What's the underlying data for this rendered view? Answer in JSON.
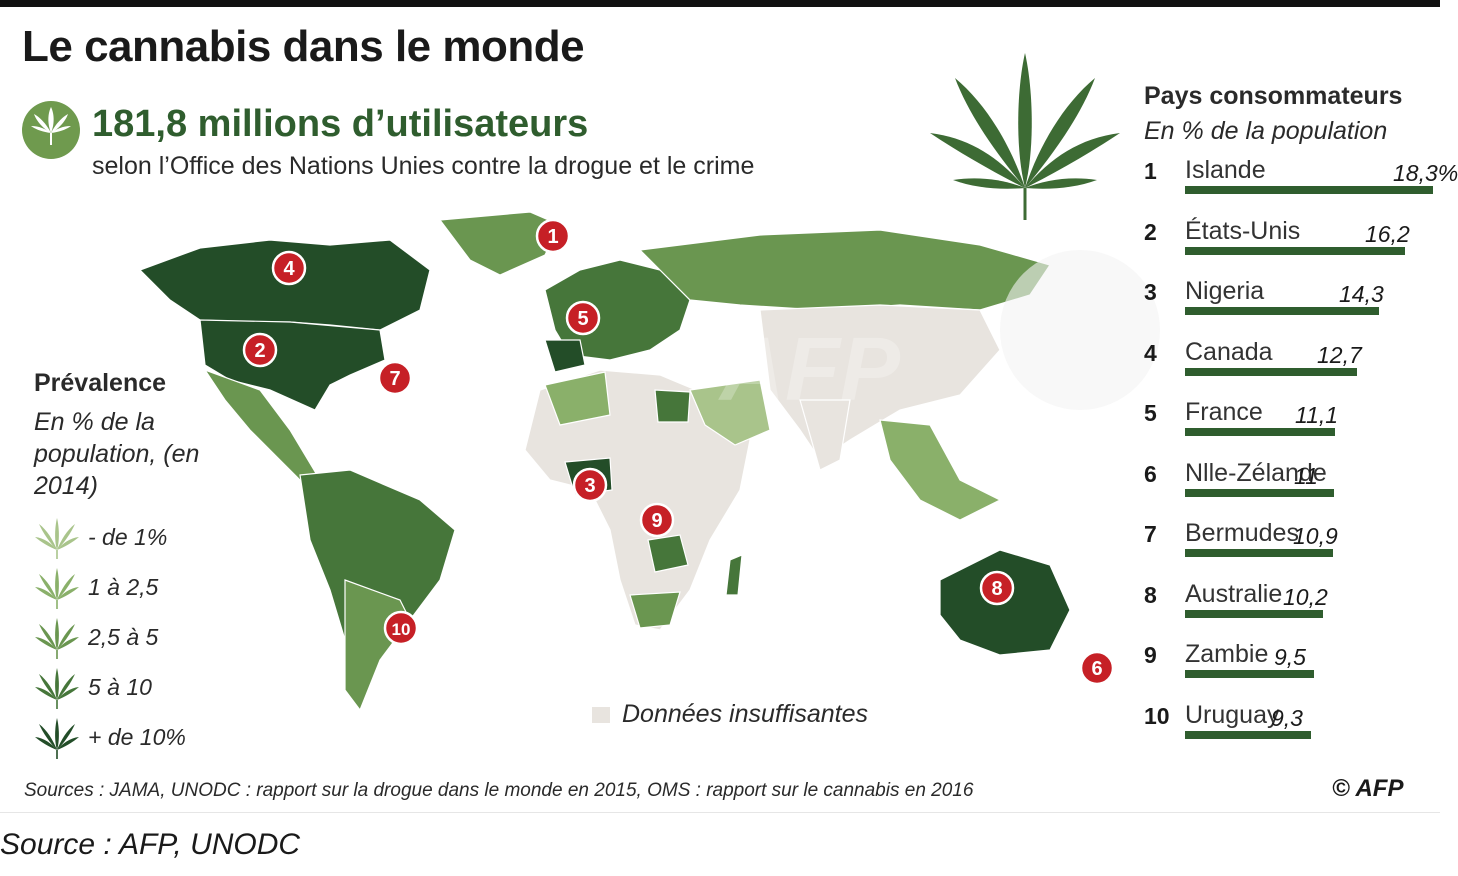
{
  "title": "Le cannabis dans le monde",
  "headline": "181,8 millions d’utilisateurs",
  "subhead": "selon l’Office des Nations Unies contre la drogue et le crime",
  "legend": {
    "title": "Prévalence",
    "subtitle": "En % de la population, (en 2014)",
    "items": [
      {
        "label": "- de 1%",
        "color": "#a9c48b"
      },
      {
        "label": "1 à 2,5",
        "color": "#8ab06a"
      },
      {
        "label": "2,5 à 5",
        "color": "#6a9650"
      },
      {
        "label": "5 à 10",
        "color": "#46763a"
      },
      {
        "label": "+ de 10%",
        "color": "#234d28"
      }
    ],
    "no_data": "Données insuffisantes",
    "no_data_color": "#e8e4df"
  },
  "map_markers": [
    {
      "rank": "1",
      "country": "Islande"
    },
    {
      "rank": "2",
      "country": "États-Unis"
    },
    {
      "rank": "3",
      "country": "Nigeria"
    },
    {
      "rank": "4",
      "country": "Canada"
    },
    {
      "rank": "5",
      "country": "France"
    },
    {
      "rank": "6",
      "country": "Nlle-Zélande"
    },
    {
      "rank": "7",
      "country": "Bermudes"
    },
    {
      "rank": "8",
      "country": "Australie"
    },
    {
      "rank": "9",
      "country": "Zambie"
    },
    {
      "rank": "10",
      "country": "Uruguay"
    }
  ],
  "ranking": {
    "title": "Pays consommateurs",
    "subtitle": "En % de la population",
    "rows": [
      {
        "rank": "1",
        "country": "Islande",
        "value_label": "18,3%",
        "value": 18.3
      },
      {
        "rank": "2",
        "country": "États-Unis",
        "value_label": "16,2",
        "value": 16.2
      },
      {
        "rank": "3",
        "country": "Nigeria",
        "value_label": "14,3",
        "value": 14.3
      },
      {
        "rank": "4",
        "country": "Canada",
        "value_label": "12,7",
        "value": 12.7
      },
      {
        "rank": "5",
        "country": "France",
        "value_label": "11,1",
        "value": 11.1
      },
      {
        "rank": "6",
        "country": "Nlle-Zélande",
        "value_label": "11",
        "value": 11.0
      },
      {
        "rank": "7",
        "country": "Bermudes",
        "value_label": "10,9",
        "value": 10.9
      },
      {
        "rank": "8",
        "country": "Australie",
        "value_label": "10,2",
        "value": 10.2
      },
      {
        "rank": "9",
        "country": "Zambie",
        "value_label": "9,5",
        "value": 9.5
      },
      {
        "rank": "10",
        "country": "Uruguay",
        "value_label": "9,3",
        "value": 9.3
      }
    ]
  },
  "sources": "Sources : JAMA, UNODC : rapport sur la drogue dans le monde en 2015, OMS : rapport sur le cannabis en 2016",
  "copyright": "© AFP",
  "caption": "Source : AFP, UNODC",
  "colors": {
    "bar": "#2f5d2e",
    "marker": "#c62026",
    "headline": "#2f5d2e"
  }
}
